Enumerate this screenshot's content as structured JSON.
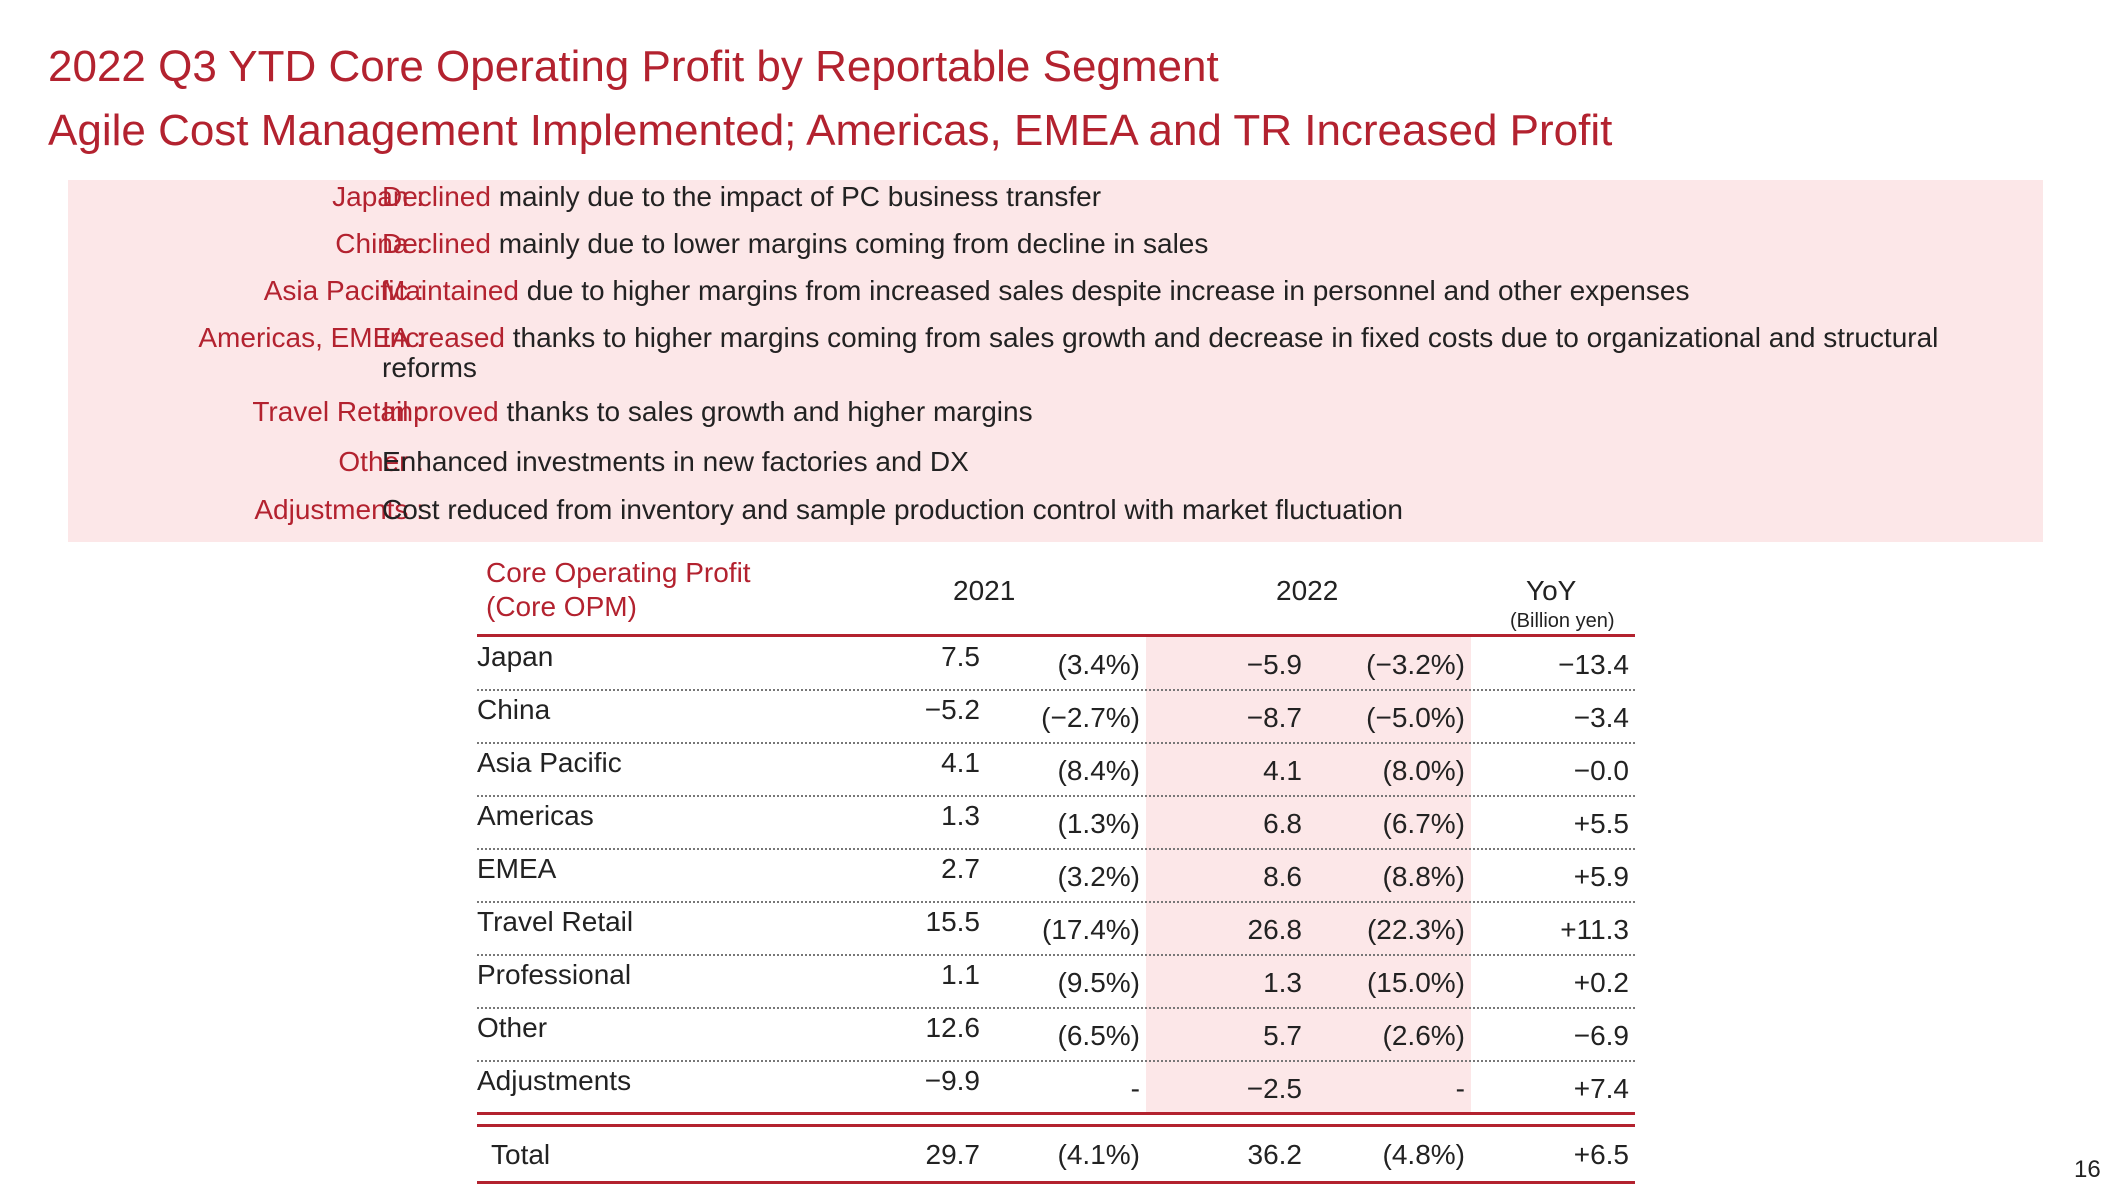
{
  "title": {
    "line1": "2022 Q3 YTD Core Operating Profit by Reportable Segment",
    "line2": "Agile Cost Management Implemented; Americas, EMEA and TR Increased Profit"
  },
  "summary": [
    {
      "label": "Japan :",
      "keyword": "Declined",
      "text": " mainly due to the impact of PC business transfer"
    },
    {
      "label": "China :",
      "keyword": "Declined",
      "text": " mainly due to lower margins coming from decline in sales"
    },
    {
      "label": "Asia Pacific :",
      "keyword": "Maintained",
      "text": " due to higher margins from increased sales despite increase in personnel and other expenses"
    },
    {
      "label": "Americas, EMEA :",
      "keyword": "Increased",
      "text": " thanks to higher margins coming from sales growth and decrease in fixed costs due to organizational and structural reforms"
    },
    {
      "label": "Travel Retail :",
      "keyword": "Improved",
      "text": " thanks to sales growth and higher margins"
    },
    {
      "label": "Other :",
      "keyword": "",
      "text": "Enhanced investments in new factories and DX"
    },
    {
      "label": "Adjustments :",
      "keyword": "",
      "text": "Cost reduced from inventory and sample production control with market fluctuation"
    }
  ],
  "table": {
    "label_line1": "Core Operating Profit",
    "label_line2": "(Core OPM)",
    "col_2021": "2021",
    "col_2022": "2022",
    "col_yoy": "YoY",
    "unit": "(Billion yen)",
    "rows": [
      {
        "name": "Japan",
        "v2021": "7.5",
        "p2021": "(3.4%)",
        "v2022": "−5.9",
        "p2022": "(−3.2%)",
        "yoy": "−13.4"
      },
      {
        "name": "China",
        "v2021": "−5.2",
        "p2021": "(−2.7%)",
        "v2022": "−8.7",
        "p2022": "(−5.0%)",
        "yoy": "−3.4"
      },
      {
        "name": "Asia Pacific",
        "v2021": "4.1",
        "p2021": "(8.4%)",
        "v2022": "4.1",
        "p2022": "(8.0%)",
        "yoy": "−0.0"
      },
      {
        "name": "Americas",
        "v2021": "1.3",
        "p2021": "(1.3%)",
        "v2022": "6.8",
        "p2022": "(6.7%)",
        "yoy": "+5.5"
      },
      {
        "name": "EMEA",
        "v2021": "2.7",
        "p2021": "(3.2%)",
        "v2022": "8.6",
        "p2022": "(8.8%)",
        "yoy": "+5.9"
      },
      {
        "name": "Travel Retail",
        "v2021": "15.5",
        "p2021": "(17.4%)",
        "v2022": "26.8",
        "p2022": "(22.3%)",
        "yoy": "+11.3"
      },
      {
        "name": "Professional",
        "v2021": "1.1",
        "p2021": "(9.5%)",
        "v2022": "1.3",
        "p2022": "(15.0%)",
        "yoy": "+0.2"
      },
      {
        "name": "Other",
        "v2021": "12.6",
        "p2021": "(6.5%)",
        "v2022": "5.7",
        "p2022": "(2.6%)",
        "yoy": "−6.9"
      },
      {
        "name": "Adjustments",
        "v2021": "−9.9",
        "p2021": "-",
        "v2022": "−2.5",
        "p2022": "-",
        "yoy": "+7.4"
      }
    ],
    "total": {
      "name": "Total",
      "v2021": "29.7",
      "p2021": "(4.1%)",
      "v2022": "36.2",
      "p2022": "(4.8%)",
      "yoy": "+6.5"
    }
  },
  "page_number": "16",
  "colors": {
    "accent": "#b3222f",
    "highlight": "#fce7e8"
  }
}
